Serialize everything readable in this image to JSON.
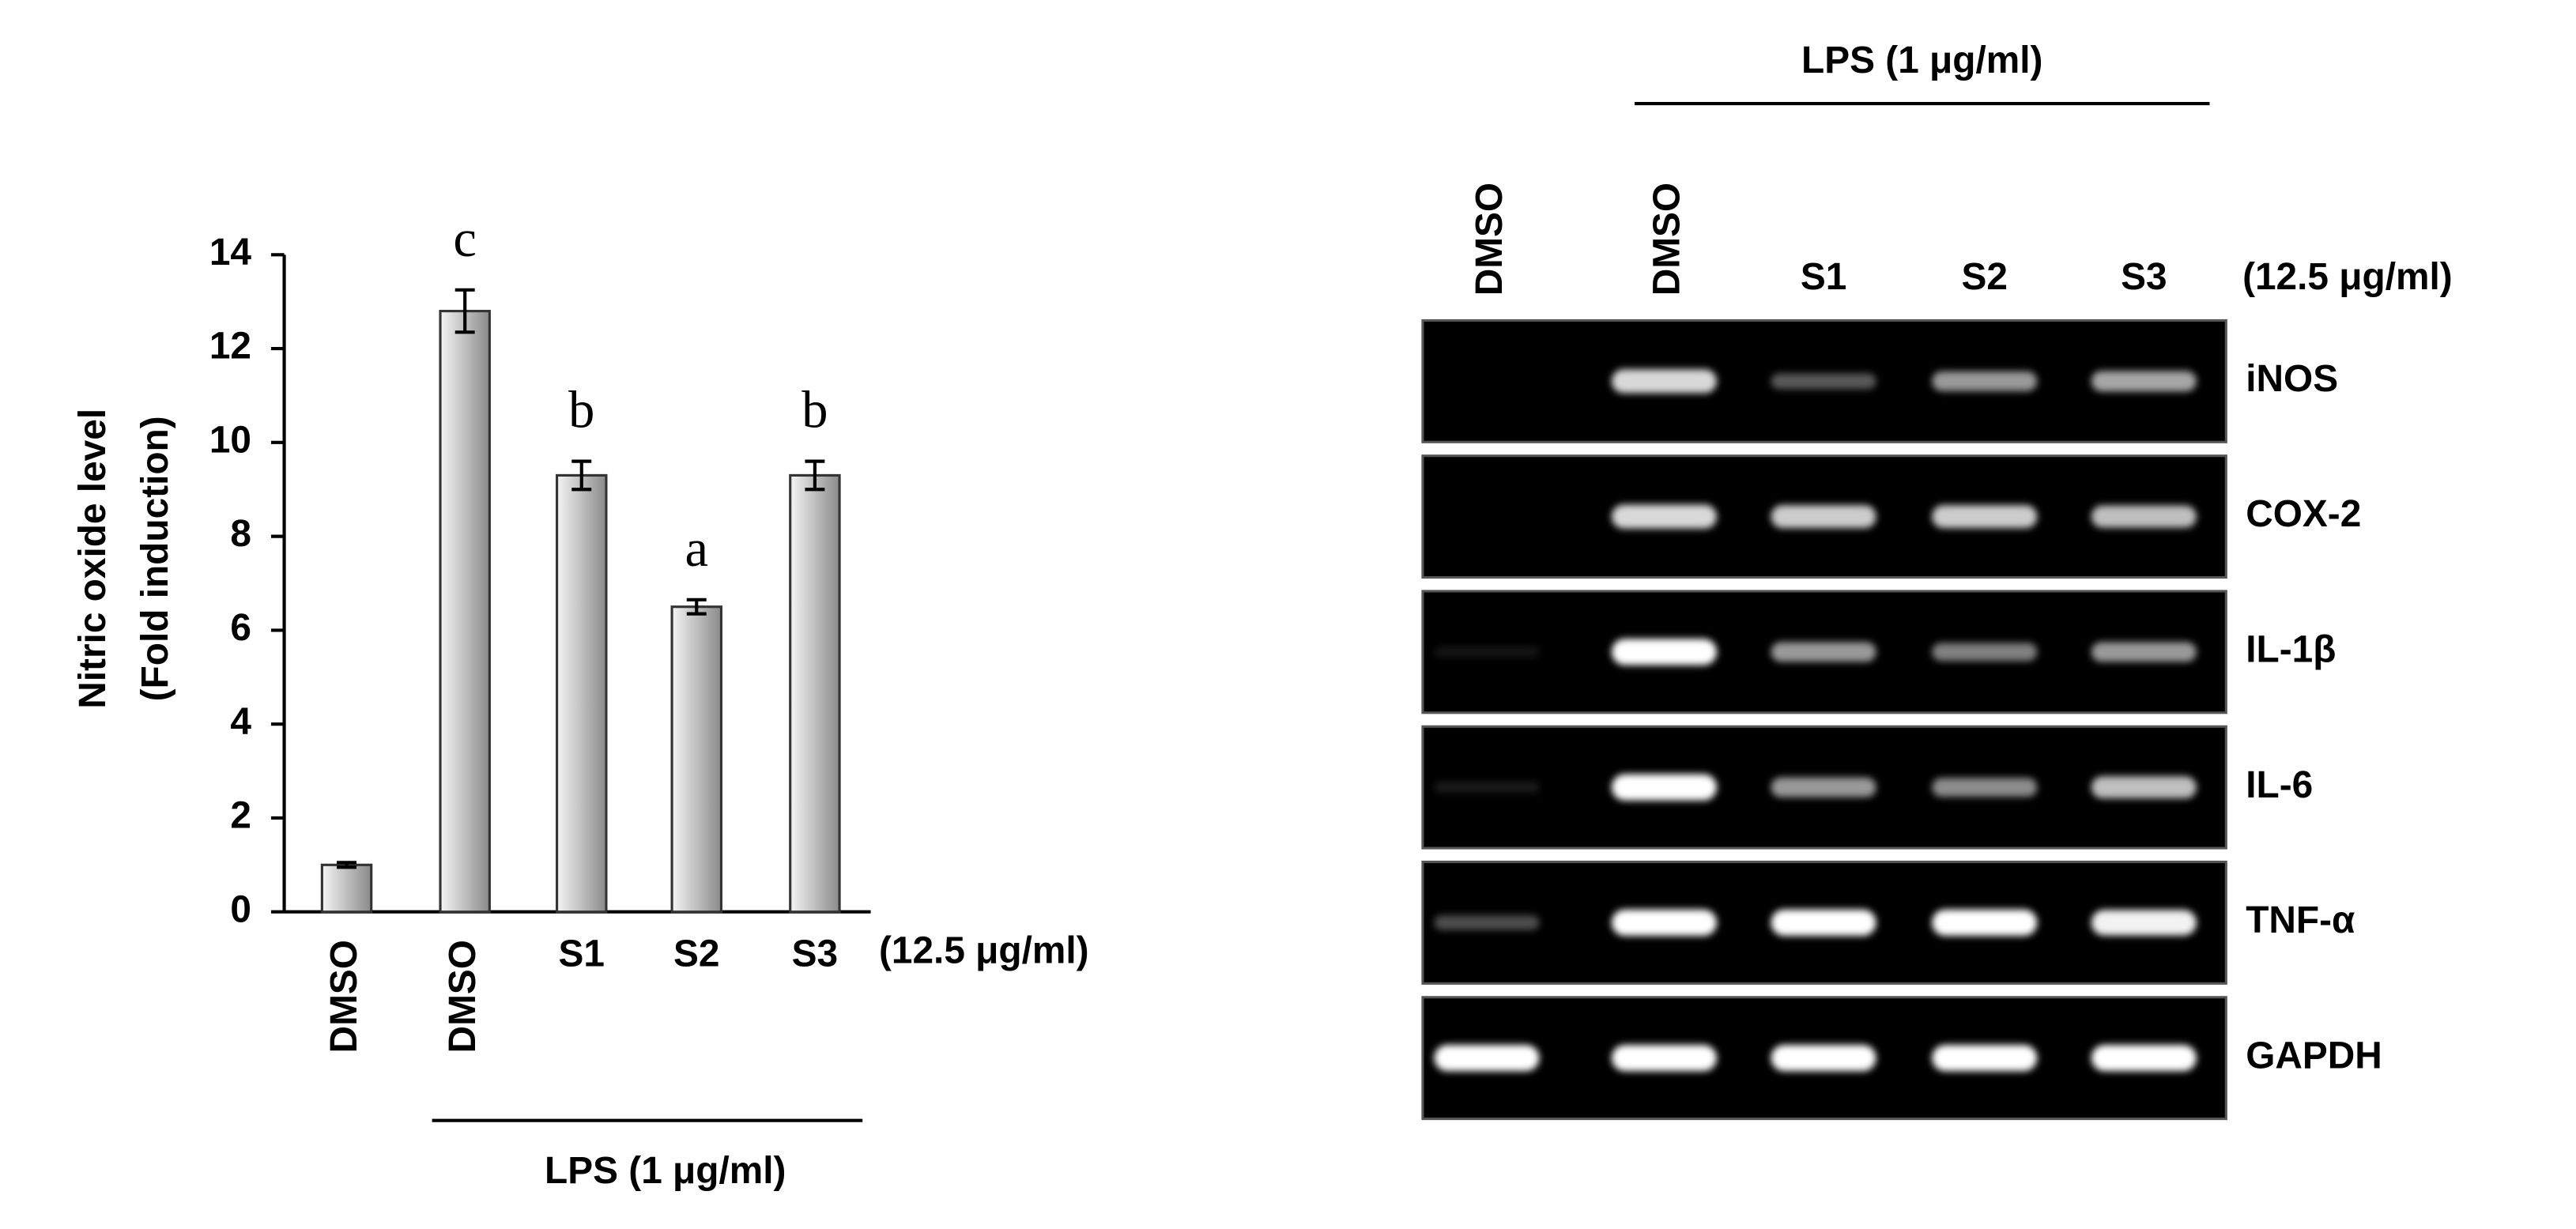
{
  "chart_data": {
    "type": "bar",
    "y_label": [
      "Nitric oxide level",
      "(Fold induction)"
    ],
    "categories": [
      "DMSO",
      "DMSO",
      "S1",
      "S2",
      "S3"
    ],
    "values": [
      1,
      12.8,
      9.3,
      6.5,
      9.3
    ],
    "errors": [
      0.05,
      0.45,
      0.3,
      0.15,
      0.3
    ],
    "annotations": [
      null,
      "c",
      "b",
      "a",
      "b"
    ],
    "treatment_label": "(12.5 μg/ml)",
    "group_label": "LPS (1 μg/ml)",
    "color": "#8a8a8a",
    "ylim": [
      0,
      14
    ],
    "yticks": [
      0,
      2,
      4,
      6,
      8,
      10,
      12,
      14
    ]
  },
  "gel": {
    "header": "LPS (1 μg/ml)",
    "lanes": [
      "DMSO",
      "DMSO",
      "S1",
      "S2",
      "S3"
    ],
    "concentration": "(12.5 μg/ml)",
    "rows": [
      {
        "gene": "iNOS",
        "bands": [
          0,
          0.85,
          0.35,
          0.6,
          0.65
        ]
      },
      {
        "gene": "COX-2",
        "bands": [
          0,
          0.85,
          0.8,
          0.8,
          0.75
        ]
      },
      {
        "gene": "IL-1β",
        "bands": [
          0.08,
          1,
          0.6,
          0.5,
          0.6
        ]
      },
      {
        "gene": "IL-6",
        "bands": [
          0.1,
          1,
          0.6,
          0.55,
          0.75
        ]
      },
      {
        "gene": "TNF-α",
        "bands": [
          0.3,
          1,
          1,
          1,
          0.95
        ]
      },
      {
        "gene": "GAPDH",
        "bands": [
          1,
          1,
          1,
          1,
          1
        ]
      }
    ]
  }
}
